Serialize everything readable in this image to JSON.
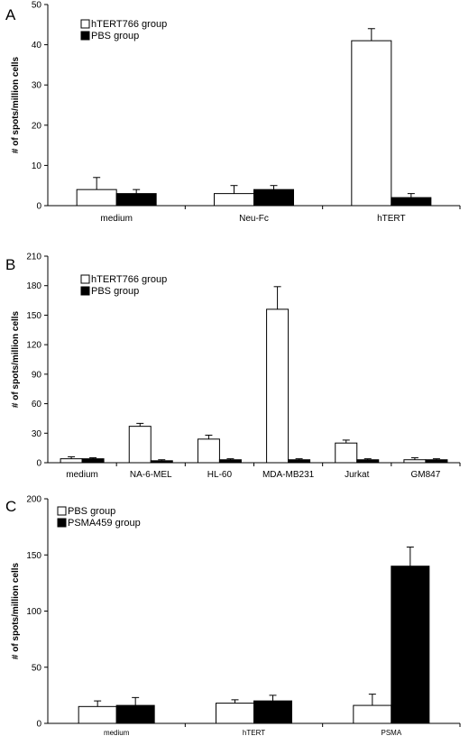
{
  "chart_data": [
    {
      "panel": "A",
      "type": "bar",
      "ylabel": "# of spots/million cells",
      "ylim": [
        0,
        50
      ],
      "yticks": [
        0,
        10,
        20,
        30,
        40,
        50
      ],
      "categories": [
        "medium",
        "Neu-Fc",
        "hTERT"
      ],
      "series": [
        {
          "name": "hTERT766 group",
          "fill": "#ffffff",
          "values": [
            4,
            3,
            41
          ],
          "errors": [
            3,
            2,
            3
          ]
        },
        {
          "name": "PBS group",
          "fill": "#000000",
          "values": [
            3,
            4,
            2
          ],
          "errors": [
            1,
            1,
            1
          ]
        }
      ],
      "legend": "top-left"
    },
    {
      "panel": "B",
      "type": "bar",
      "ylabel": "# of spots/million cells",
      "ylim": [
        0,
        210
      ],
      "yticks": [
        0,
        30,
        60,
        90,
        120,
        150,
        180,
        210
      ],
      "categories": [
        "medium",
        "NA-6-MEL",
        "HL-60",
        "MDA-MB231",
        "Jurkat",
        "GM847"
      ],
      "series": [
        {
          "name": "hTERT766 group",
          "fill": "#ffffff",
          "values": [
            4,
            37,
            24,
            156,
            20,
            3
          ],
          "errors": [
            2,
            3,
            4,
            23,
            3,
            2
          ]
        },
        {
          "name": "PBS group",
          "fill": "#000000",
          "values": [
            4,
            2,
            3,
            3,
            3,
            3
          ],
          "errors": [
            1,
            1,
            1,
            1,
            1,
            1
          ]
        }
      ],
      "legend": "top-left"
    },
    {
      "panel": "C",
      "type": "bar",
      "ylabel": "# of spots/million cells",
      "ylim": [
        0,
        200
      ],
      "yticks": [
        0,
        50,
        100,
        150,
        200
      ],
      "categories": [
        "medium",
        "hTERT",
        "PSMA"
      ],
      "series": [
        {
          "name": "PBS group",
          "fill": "#ffffff",
          "values": [
            15,
            18,
            16
          ],
          "errors": [
            5,
            3,
            10
          ]
        },
        {
          "name": "PSMA459 group",
          "fill": "#000000",
          "values": [
            16,
            20,
            140
          ],
          "errors": [
            7,
            5,
            17
          ]
        }
      ],
      "legend": "top-left"
    }
  ]
}
